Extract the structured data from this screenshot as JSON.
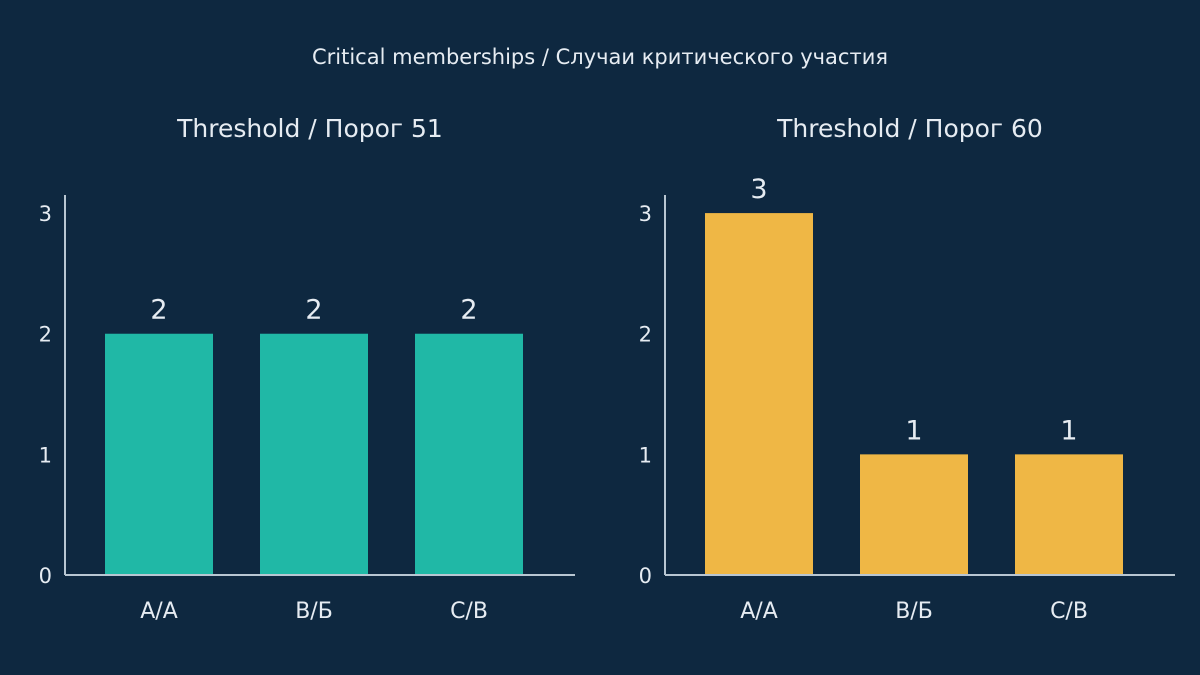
{
  "title": "Critical memberships / Случаи критического участия",
  "colors": {
    "background": "#0e2840",
    "left_series": "#20b8a6",
    "right_series": "#efb745",
    "text": "#e6ecf2",
    "axis": "#b8c6d2"
  },
  "chart_data": [
    {
      "type": "bar",
      "title": "Threshold / Порог 51",
      "categories": [
        "A/A",
        "B/Б",
        "C/B"
      ],
      "values": [
        2,
        2,
        2
      ],
      "ylim": [
        0,
        3.15
      ],
      "yticks": [
        0,
        1,
        2,
        3
      ],
      "color": "#20b8a6",
      "data_labels": true,
      "grid": false
    },
    {
      "type": "bar",
      "title": "Threshold / Порог 60",
      "categories": [
        "A/A",
        "B/Б",
        "C/B"
      ],
      "values": [
        3,
        1,
        1
      ],
      "ylim": [
        0,
        3.15
      ],
      "yticks": [
        0,
        1,
        2,
        3
      ],
      "color": "#efb745",
      "data_labels": true,
      "grid": false
    }
  ]
}
